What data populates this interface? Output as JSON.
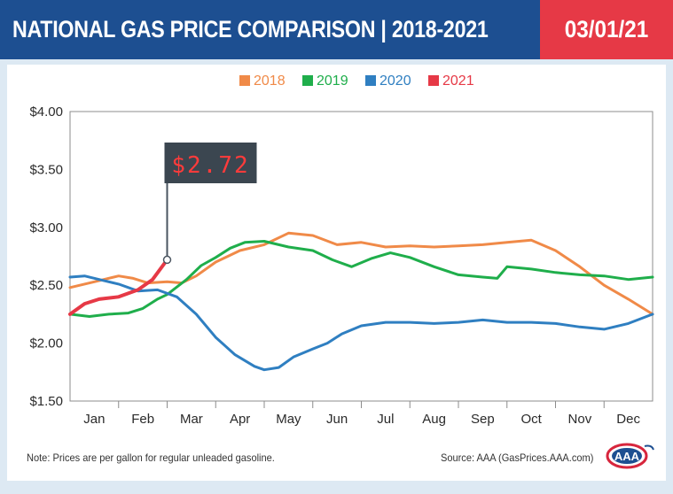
{
  "header": {
    "title": "NATIONAL GAS PRICE COMPARISON | 2018-2021",
    "date": "03/01/21"
  },
  "footer": {
    "note": "Note: Prices are per gallon for regular unleaded gasoline.",
    "source": "Source: AAA (GasPrices.AAA.com)",
    "logo_text": "AAA"
  },
  "colors": {
    "header_bg": "#1d4f91",
    "date_bg": "#e63946",
    "2018": "#f08a48",
    "2019": "#1fae4b",
    "2020": "#2f7fc1",
    "2021": "#e63946"
  },
  "chart_data": {
    "type": "line",
    "title": "",
    "xlabel": "",
    "ylabel": "",
    "categories": [
      "Jan",
      "Feb",
      "Mar",
      "Apr",
      "May",
      "Jun",
      "Jul",
      "Aug",
      "Sep",
      "Oct",
      "Nov",
      "Dec"
    ],
    "xlim": [
      0,
      12
    ],
    "ylim": [
      1.5,
      4.0
    ],
    "yticks": [
      "$1.50",
      "$2.00",
      "$2.50",
      "$3.00",
      "$3.50",
      "$4.00"
    ],
    "ytick_values": [
      1.5,
      2.0,
      2.5,
      3.0,
      3.5,
      4.0
    ],
    "grid": false,
    "legend": "top-center",
    "callout": {
      "label": "$2.72",
      "x": 2.0,
      "y": 2.72
    },
    "series": [
      {
        "name": "2018",
        "color": "#f08a48",
        "x": [
          0,
          0.5,
          1.0,
          1.3,
          1.6,
          2.0,
          2.3,
          2.6,
          3.0,
          3.5,
          4.0,
          4.5,
          5.0,
          5.5,
          6.0,
          6.5,
          7.0,
          7.5,
          8.0,
          8.5,
          9.0,
          9.5,
          10.0,
          10.5,
          11.0,
          11.5,
          12.0
        ],
        "y": [
          2.48,
          2.53,
          2.58,
          2.56,
          2.52,
          2.53,
          2.52,
          2.58,
          2.7,
          2.8,
          2.85,
          2.95,
          2.93,
          2.85,
          2.87,
          2.83,
          2.84,
          2.83,
          2.84,
          2.85,
          2.87,
          2.89,
          2.8,
          2.66,
          2.5,
          2.38,
          2.25
        ]
      },
      {
        "name": "2019",
        "color": "#1fae4b",
        "x": [
          0,
          0.4,
          0.8,
          1.2,
          1.5,
          1.8,
          2.0,
          2.4,
          2.7,
          3.0,
          3.3,
          3.6,
          4.0,
          4.5,
          5.0,
          5.4,
          5.8,
          6.2,
          6.6,
          7.0,
          7.5,
          8.0,
          8.5,
          8.8,
          9.0,
          9.5,
          10.0,
          10.5,
          11.0,
          11.5,
          12.0
        ],
        "y": [
          2.25,
          2.23,
          2.25,
          2.26,
          2.3,
          2.38,
          2.42,
          2.55,
          2.67,
          2.74,
          2.82,
          2.87,
          2.88,
          2.83,
          2.8,
          2.72,
          2.66,
          2.73,
          2.78,
          2.74,
          2.66,
          2.59,
          2.57,
          2.56,
          2.66,
          2.64,
          2.61,
          2.59,
          2.58,
          2.55,
          2.57
        ]
      },
      {
        "name": "2020",
        "color": "#2f7fc1",
        "x": [
          0,
          0.3,
          0.6,
          1.0,
          1.4,
          1.8,
          2.2,
          2.6,
          3.0,
          3.4,
          3.8,
          4.0,
          4.3,
          4.6,
          5.0,
          5.3,
          5.6,
          6.0,
          6.5,
          7.0,
          7.5,
          8.0,
          8.5,
          9.0,
          9.5,
          10.0,
          10.5,
          11.0,
          11.5,
          12.0
        ],
        "y": [
          2.57,
          2.58,
          2.55,
          2.51,
          2.45,
          2.46,
          2.4,
          2.25,
          2.05,
          1.9,
          1.8,
          1.77,
          1.79,
          1.88,
          1.95,
          2.0,
          2.08,
          2.15,
          2.18,
          2.18,
          2.17,
          2.18,
          2.2,
          2.18,
          2.18,
          2.17,
          2.14,
          2.12,
          2.17,
          2.25
        ]
      },
      {
        "name": "2021",
        "color": "#e63946",
        "x": [
          0,
          0.3,
          0.6,
          1.0,
          1.4,
          1.7,
          2.0
        ],
        "y": [
          2.25,
          2.34,
          2.38,
          2.4,
          2.46,
          2.55,
          2.72
        ]
      }
    ]
  }
}
